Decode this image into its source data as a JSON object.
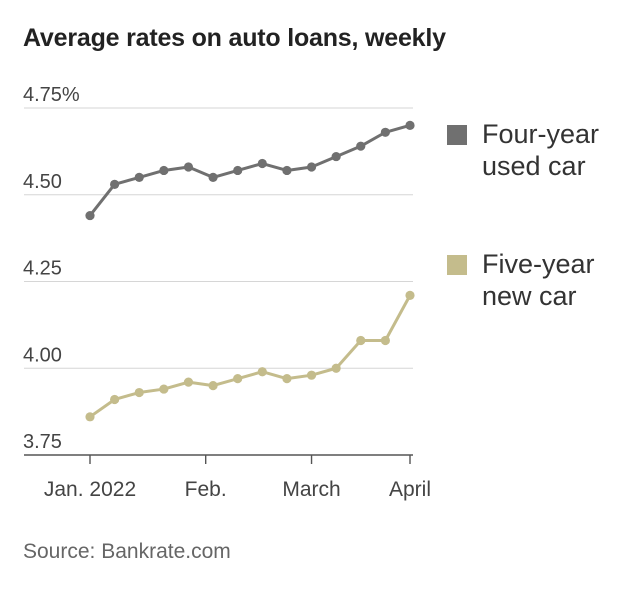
{
  "title": "Average rates on auto loans, weekly",
  "source": "Source: Bankrate.com",
  "chart_data": {
    "type": "line",
    "title": "Average rates on auto loans, weekly",
    "xlabel": "",
    "ylabel": "",
    "ylim": [
      3.75,
      4.75
    ],
    "yticks": [
      3.75,
      4.0,
      4.25,
      4.5,
      4.75
    ],
    "ytick_labels": [
      "3.75",
      "4.00",
      "4.25",
      "4.50",
      "4.75%"
    ],
    "xtick_labels": [
      "Jan. 2022",
      "Feb.",
      "March",
      "April"
    ],
    "x": [
      "2022-01-05",
      "2022-01-12",
      "2022-01-19",
      "2022-01-26",
      "2022-02-02",
      "2022-02-09",
      "2022-02-16",
      "2022-02-23",
      "2022-03-02",
      "2022-03-09",
      "2022-03-16",
      "2022-03-23",
      "2022-03-30",
      "2022-04-06"
    ],
    "grid": true,
    "legend_position": "right",
    "series": [
      {
        "name": "Four-year used car",
        "color": "#707070",
        "values": [
          4.44,
          4.53,
          4.55,
          4.57,
          4.58,
          4.55,
          4.57,
          4.59,
          4.57,
          4.58,
          4.61,
          4.64,
          4.68,
          4.7
        ]
      },
      {
        "name": "Five-year new car",
        "color": "#c4bc8c",
        "values": [
          3.86,
          3.91,
          3.93,
          3.94,
          3.96,
          3.95,
          3.97,
          3.99,
          3.97,
          3.98,
          4.0,
          4.08,
          4.08,
          4.21
        ]
      }
    ]
  }
}
